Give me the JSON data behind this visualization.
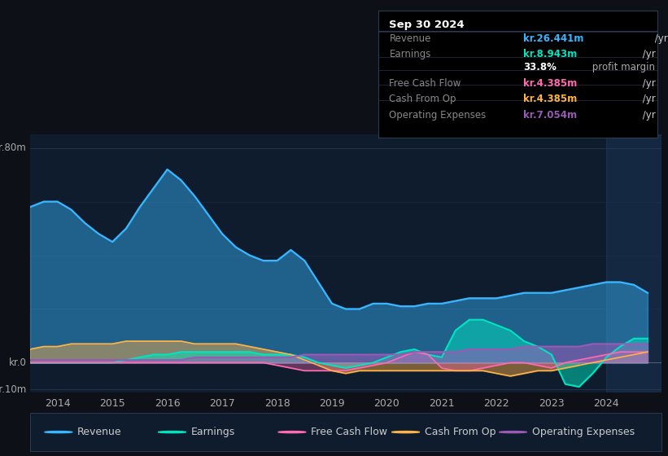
{
  "bg_color": "#0d1117",
  "plot_bg_color": "#0e1c2e",
  "title_box": {
    "date": "Sep 30 2024",
    "rows": [
      {
        "label": "Revenue",
        "value": "kr.26.441m",
        "suffix": " /yr",
        "value_color": "#38b6ff",
        "suffix_color": "#cccccc"
      },
      {
        "label": "Earnings",
        "value": "kr.8.943m",
        "suffix": " /yr",
        "value_color": "#00e5c0",
        "suffix_color": "#cccccc"
      },
      {
        "label": "",
        "value": "33.8%",
        "suffix": " profit margin",
        "value_color": "#ffffff",
        "suffix_color": "#aaaaaa"
      },
      {
        "label": "Free Cash Flow",
        "value": "kr.4.385m",
        "suffix": " /yr",
        "value_color": "#ff6ab0",
        "suffix_color": "#cccccc"
      },
      {
        "label": "Cash From Op",
        "value": "kr.4.385m",
        "suffix": " /yr",
        "value_color": "#ffb347",
        "suffix_color": "#cccccc"
      },
      {
        "label": "Operating Expenses",
        "value": "kr.7.054m",
        "suffix": " /yr",
        "value_color": "#9b59b6",
        "suffix_color": "#cccccc"
      }
    ]
  },
  "revenue_color": "#38b6ff",
  "earnings_color": "#00e5c0",
  "fcf_color": "#ff6ab0",
  "cfop_color": "#ffb347",
  "opex_color": "#9b59b6",
  "legend_items": [
    "Revenue",
    "Earnings",
    "Free Cash Flow",
    "Cash From Op",
    "Operating Expenses"
  ],
  "legend_colors": [
    "#38b6ff",
    "#00e5c0",
    "#ff6ab0",
    "#ffb347",
    "#9b59b6"
  ],
  "x": [
    2013.5,
    2013.75,
    2014.0,
    2014.25,
    2014.5,
    2014.75,
    2015.0,
    2015.25,
    2015.5,
    2015.75,
    2016.0,
    2016.25,
    2016.5,
    2016.75,
    2017.0,
    2017.25,
    2017.5,
    2017.75,
    2018.0,
    2018.25,
    2018.5,
    2018.75,
    2019.0,
    2019.25,
    2019.5,
    2019.75,
    2020.0,
    2020.25,
    2020.5,
    2020.75,
    2021.0,
    2021.25,
    2021.5,
    2021.75,
    2022.0,
    2022.25,
    2022.5,
    2022.75,
    2023.0,
    2023.25,
    2023.5,
    2023.75,
    2024.0,
    2024.25,
    2024.5,
    2024.75
  ],
  "revenue": [
    58,
    60,
    60,
    57,
    52,
    48,
    45,
    50,
    58,
    65,
    72,
    68,
    62,
    55,
    48,
    43,
    40,
    38,
    38,
    42,
    38,
    30,
    22,
    20,
    20,
    22,
    22,
    21,
    21,
    22,
    22,
    23,
    24,
    24,
    24,
    25,
    26,
    26,
    26,
    27,
    28,
    29,
    30,
    30,
    29,
    26
  ],
  "earnings": [
    0,
    0,
    0,
    0,
    0,
    0,
    0,
    1,
    2,
    3,
    3,
    4,
    4,
    4,
    4,
    4,
    4,
    3,
    3,
    3,
    2,
    0,
    -1,
    -2,
    -1,
    0,
    2,
    4,
    5,
    3,
    2,
    12,
    16,
    16,
    14,
    12,
    8,
    6,
    3,
    -8,
    -9,
    -4,
    2,
    6,
    9,
    9
  ],
  "free_cash_flow": [
    0,
    0,
    0,
    0,
    0,
    0,
    0,
    0,
    0,
    0,
    0,
    0,
    0,
    0,
    0,
    0,
    0,
    0,
    -1,
    -2,
    -3,
    -3,
    -3,
    -3,
    -2,
    -1,
    0,
    2,
    4,
    3,
    -2,
    -3,
    -3,
    -2,
    -1,
    0,
    0,
    -1,
    -2,
    0,
    1,
    2,
    3,
    4,
    4,
    4
  ],
  "cash_from_op": [
    5,
    6,
    6,
    7,
    7,
    7,
    7,
    8,
    8,
    8,
    8,
    8,
    7,
    7,
    7,
    7,
    6,
    5,
    4,
    3,
    1,
    -1,
    -3,
    -4,
    -3,
    -3,
    -3,
    -3,
    -3,
    -3,
    -3,
    -3,
    -3,
    -3,
    -4,
    -5,
    -4,
    -3,
    -3,
    -2,
    -1,
    0,
    1,
    2,
    3,
    4
  ],
  "opex": [
    1,
    1,
    1,
    1,
    1,
    1,
    1,
    1,
    1,
    1,
    1,
    1,
    2,
    2,
    2,
    2,
    2,
    2,
    2,
    2,
    3,
    3,
    3,
    3,
    3,
    3,
    3,
    3,
    4,
    4,
    4,
    4,
    5,
    5,
    5,
    5,
    6,
    6,
    6,
    6,
    6,
    7,
    7,
    7,
    7,
    7
  ]
}
